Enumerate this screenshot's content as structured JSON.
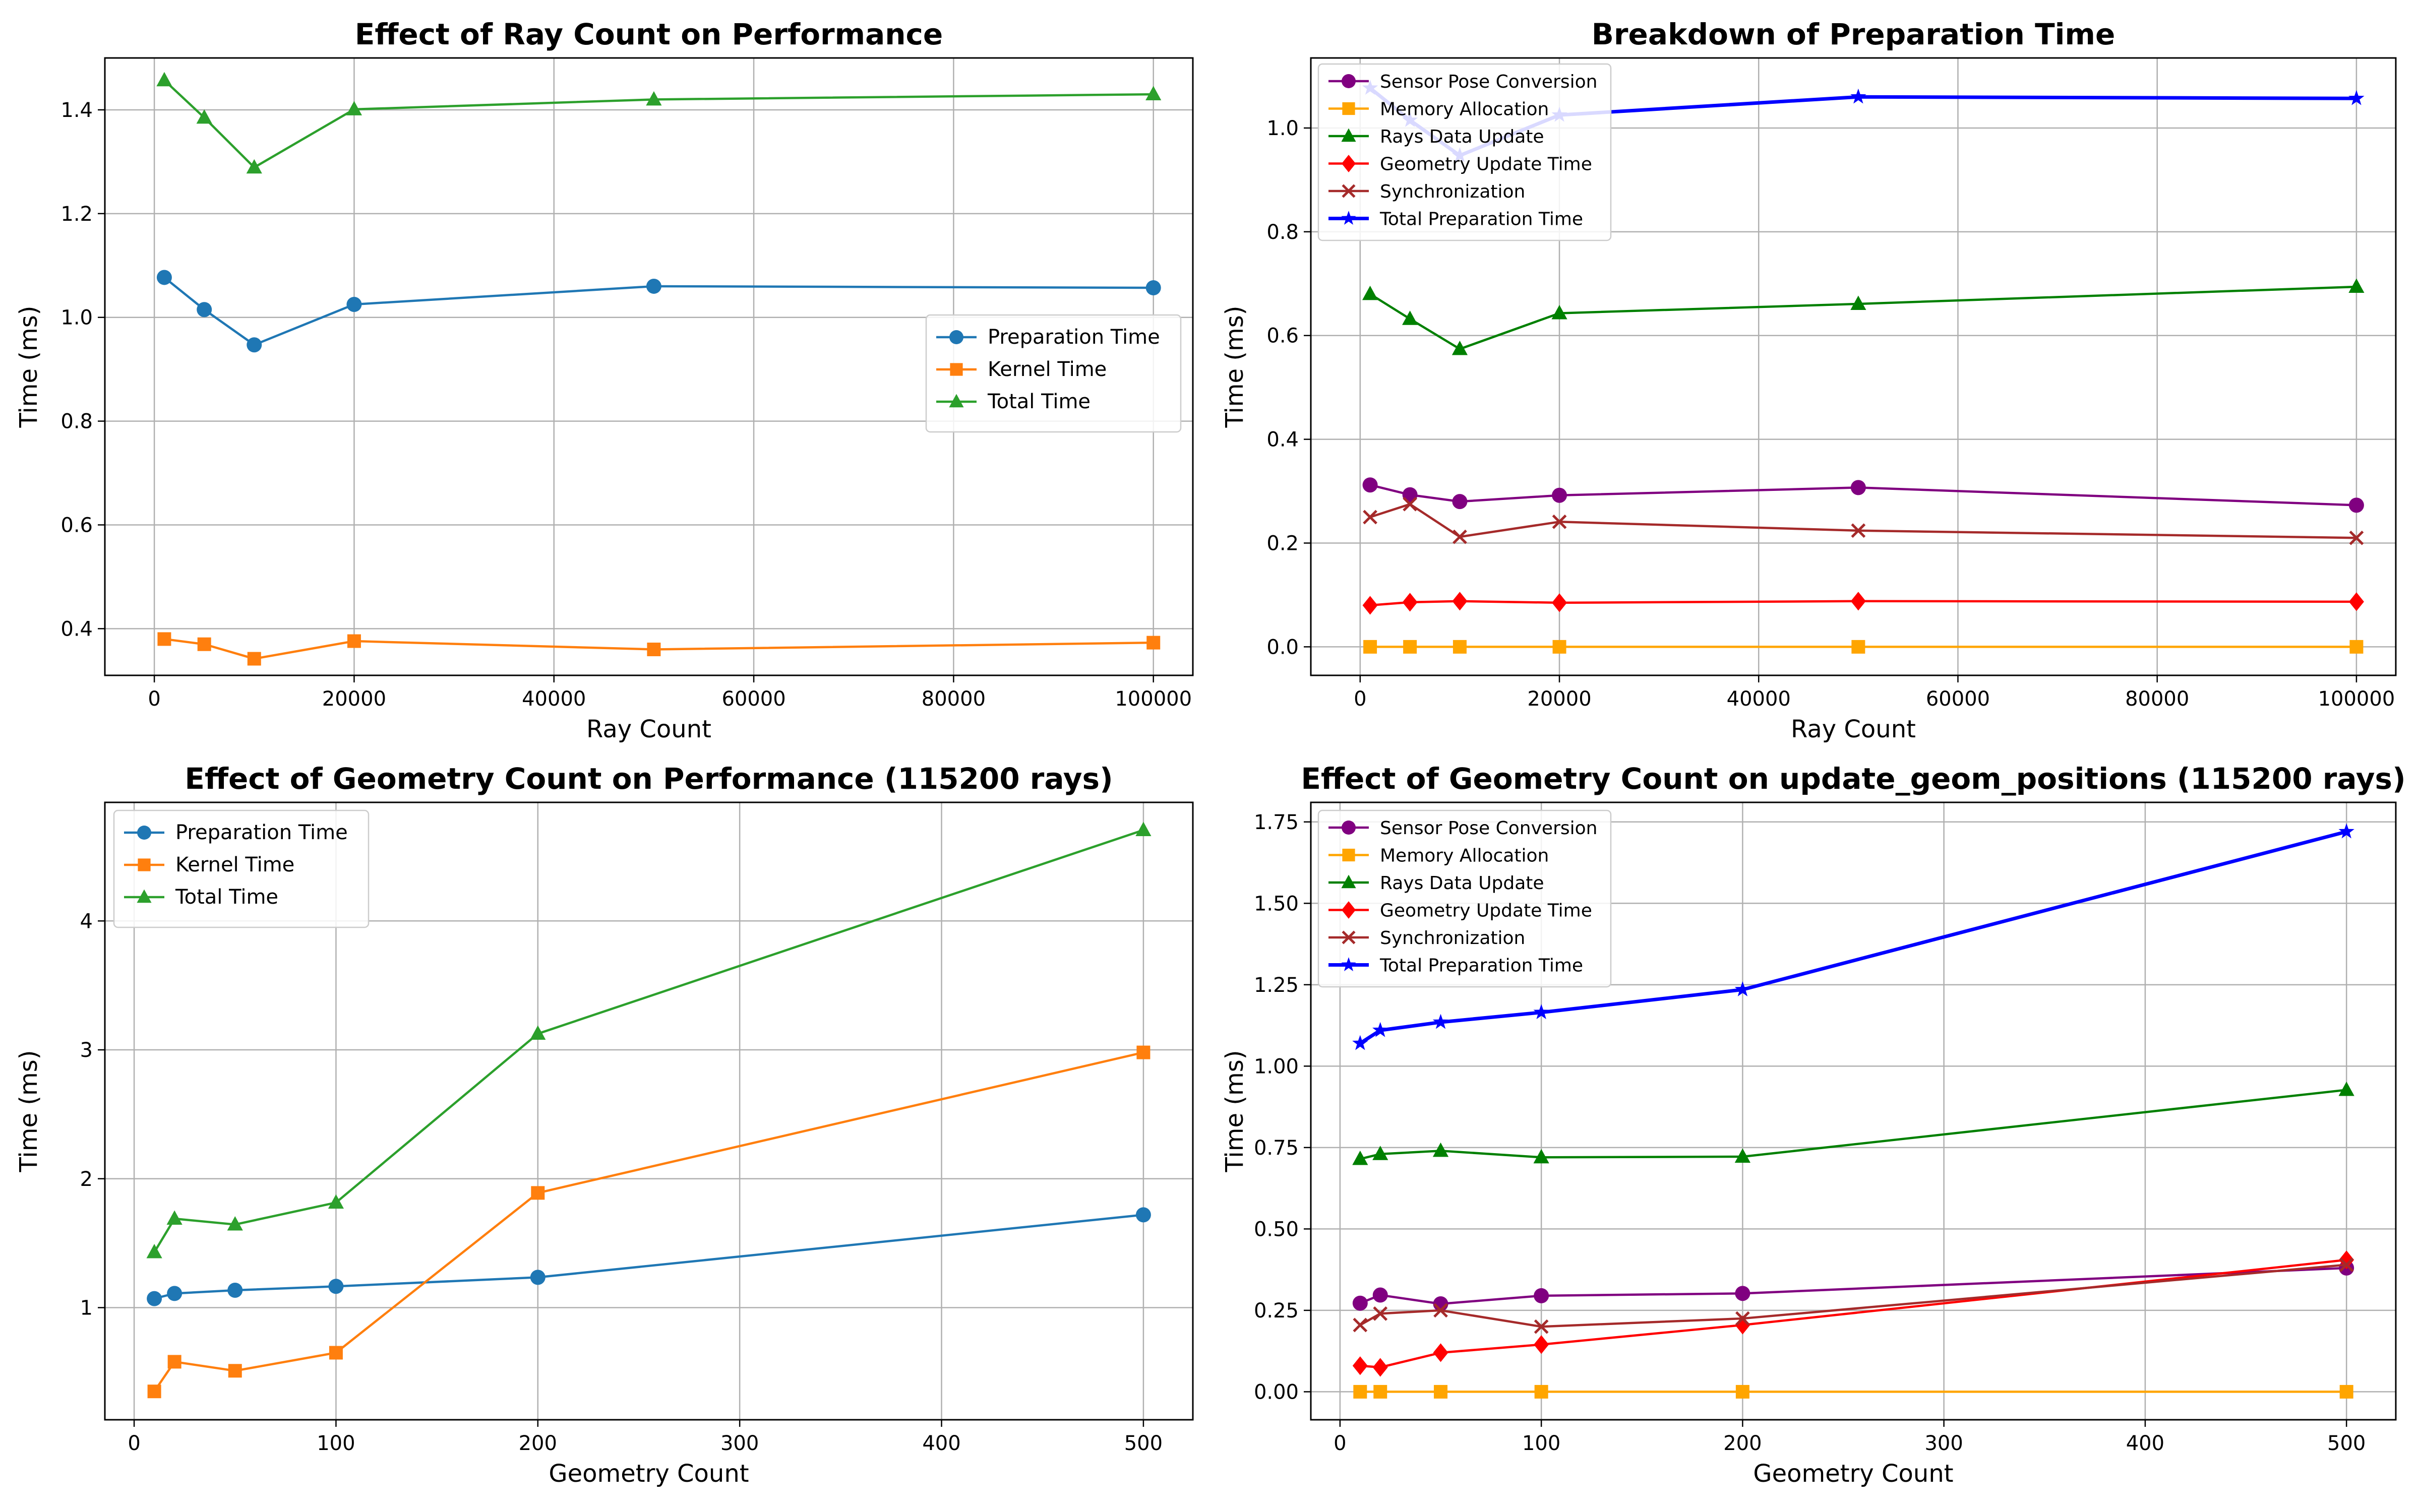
{
  "figure": {
    "colors": {
      "grid": "#b0b0b0",
      "spine": "#000000",
      "blue": "#1f77b4",
      "orange": "#ff7f0e",
      "green": "#2ca02c",
      "purple": "#800080",
      "gold": "#ffa500",
      "dgreen": "#008000",
      "red": "#ff0000",
      "brown": "#a52a2a",
      "tblue": "#0000ff"
    }
  },
  "chart_data": [
    {
      "id": "ray_perf",
      "type": "line",
      "title": "Effect of Ray Count on Performance",
      "xlabel": "Ray Count",
      "ylabel": "Time (ms)",
      "xlim": [
        -4950,
        103950
      ],
      "ylim": [
        0.31,
        1.5
      ],
      "xticks": [
        0,
        20000,
        40000,
        60000,
        80000,
        100000
      ],
      "xtick_labels": [
        "0",
        "20000",
        "40000",
        "60000",
        "80000",
        "100000"
      ],
      "yticks": [
        0.4,
        0.6,
        0.8,
        1.0,
        1.2,
        1.4
      ],
      "ytick_labels": [
        "0.4",
        "0.6",
        "0.8",
        "1.0",
        "1.2",
        "1.4"
      ],
      "grid": true,
      "legend_position": "center-right",
      "x": [
        1000,
        5000,
        10000,
        20000,
        50000,
        100000
      ],
      "series": [
        {
          "name": "Preparation Time",
          "color": "blue",
          "marker": "circle",
          "values": [
            1.077,
            1.015,
            0.947,
            1.025,
            1.06,
            1.057
          ]
        },
        {
          "name": "Kernel Time",
          "color": "orange",
          "marker": "square",
          "values": [
            0.38,
            0.37,
            0.342,
            0.376,
            0.36,
            0.373
          ]
        },
        {
          "name": "Total Time",
          "color": "green",
          "marker": "triangle",
          "values": [
            1.457,
            1.385,
            1.289,
            1.401,
            1.42,
            1.43
          ]
        }
      ]
    },
    {
      "id": "prep_breakdown",
      "type": "line",
      "title": "Breakdown of Preparation Time",
      "xlabel": "Ray Count",
      "ylabel": "Time (ms)",
      "xlim": [
        -4950,
        103950
      ],
      "ylim": [
        -0.055,
        1.135
      ],
      "xticks": [
        0,
        20000,
        40000,
        60000,
        80000,
        100000
      ],
      "xtick_labels": [
        "0",
        "20000",
        "40000",
        "60000",
        "80000",
        "100000"
      ],
      "yticks": [
        0.0,
        0.2,
        0.4,
        0.6,
        0.8,
        1.0
      ],
      "ytick_labels": [
        "0.0",
        "0.2",
        "0.4",
        "0.6",
        "0.8",
        "1.0"
      ],
      "grid": true,
      "legend_position": "top-left",
      "x": [
        1000,
        5000,
        10000,
        20000,
        50000,
        100000
      ],
      "series": [
        {
          "name": "Sensor Pose Conversion",
          "color": "purple",
          "marker": "circle",
          "values": [
            0.312,
            0.293,
            0.28,
            0.292,
            0.307,
            0.273
          ]
        },
        {
          "name": "Memory Allocation",
          "color": "gold",
          "marker": "square",
          "values": [
            0.0,
            0.0,
            0.0,
            0.0,
            0.0,
            0.0
          ]
        },
        {
          "name": "Rays Data Update",
          "color": "dgreen",
          "marker": "triangle",
          "values": [
            0.68,
            0.632,
            0.574,
            0.643,
            0.661,
            0.694
          ]
        },
        {
          "name": "Geometry Update Time",
          "color": "red",
          "marker": "diamond",
          "values": [
            0.08,
            0.086,
            0.088,
            0.085,
            0.088,
            0.087
          ]
        },
        {
          "name": "Synchronization",
          "color": "brown",
          "marker": "x",
          "values": [
            0.25,
            0.275,
            0.212,
            0.241,
            0.224,
            0.21
          ]
        },
        {
          "name": "Total Preparation Time",
          "color": "tblue",
          "marker": "star",
          "thick": true,
          "values": [
            1.077,
            1.015,
            0.947,
            1.025,
            1.06,
            1.057
          ]
        }
      ]
    },
    {
      "id": "geom_perf",
      "type": "line",
      "title": "Effect of Geometry Count on Performance (115200 rays)",
      "xlabel": "Geometry Count",
      "ylabel": "Time (ms)",
      "xlim": [
        -14.5,
        524.5
      ],
      "ylim": [
        0.13,
        4.92
      ],
      "xticks": [
        0,
        100,
        200,
        300,
        400,
        500
      ],
      "xtick_labels": [
        "0",
        "100",
        "200",
        "300",
        "400",
        "500"
      ],
      "yticks": [
        1,
        2,
        3,
        4
      ],
      "ytick_labels": [
        "1",
        "2",
        "3",
        "4"
      ],
      "grid": true,
      "legend_position": "top-left",
      "x": [
        10,
        20,
        50,
        100,
        200,
        500
      ],
      "series": [
        {
          "name": "Preparation Time",
          "color": "blue",
          "marker": "circle",
          "values": [
            1.07,
            1.11,
            1.135,
            1.165,
            1.235,
            1.72
          ]
        },
        {
          "name": "Kernel Time",
          "color": "orange",
          "marker": "square",
          "values": [
            0.35,
            0.58,
            0.51,
            0.65,
            1.89,
            2.98
          ]
        },
        {
          "name": "Total Time",
          "color": "green",
          "marker": "triangle",
          "values": [
            1.43,
            1.69,
            1.645,
            1.815,
            3.125,
            4.705
          ]
        }
      ]
    },
    {
      "id": "geom_update",
      "type": "line",
      "title": "Effect of Geometry Count on update_geom_positions (115200 rays)",
      "xlabel": "Geometry Count",
      "ylabel": "Time (ms)",
      "xlim": [
        -14.5,
        524.5
      ],
      "ylim": [
        -0.086,
        1.81
      ],
      "xticks": [
        0,
        100,
        200,
        300,
        400,
        500
      ],
      "xtick_labels": [
        "0",
        "100",
        "200",
        "300",
        "400",
        "500"
      ],
      "yticks": [
        0.0,
        0.25,
        0.5,
        0.75,
        1.0,
        1.25,
        1.5,
        1.75
      ],
      "ytick_labels": [
        "0.00",
        "0.25",
        "0.50",
        "0.75",
        "1.00",
        "1.25",
        "1.50",
        "1.75"
      ],
      "grid": true,
      "legend_position": "top-left",
      "x": [
        10,
        20,
        50,
        100,
        200,
        500
      ],
      "series": [
        {
          "name": "Sensor Pose Conversion",
          "color": "purple",
          "marker": "circle",
          "values": [
            0.272,
            0.297,
            0.27,
            0.295,
            0.302,
            0.38
          ]
        },
        {
          "name": "Memory Allocation",
          "color": "gold",
          "marker": "square",
          "values": [
            0.0,
            0.0,
            0.0,
            0.0,
            0.0,
            0.0
          ]
        },
        {
          "name": "Rays Data Update",
          "color": "dgreen",
          "marker": "triangle",
          "values": [
            0.715,
            0.73,
            0.74,
            0.72,
            0.722,
            0.927
          ]
        },
        {
          "name": "Geometry Update Time",
          "color": "red",
          "marker": "diamond",
          "values": [
            0.08,
            0.075,
            0.12,
            0.145,
            0.205,
            0.405
          ]
        },
        {
          "name": "Synchronization",
          "color": "brown",
          "marker": "x",
          "values": [
            0.205,
            0.24,
            0.25,
            0.2,
            0.225,
            0.39
          ]
        },
        {
          "name": "Total Preparation Time",
          "color": "tblue",
          "marker": "star",
          "thick": true,
          "values": [
            1.07,
            1.11,
            1.135,
            1.165,
            1.235,
            1.72
          ]
        }
      ]
    }
  ]
}
